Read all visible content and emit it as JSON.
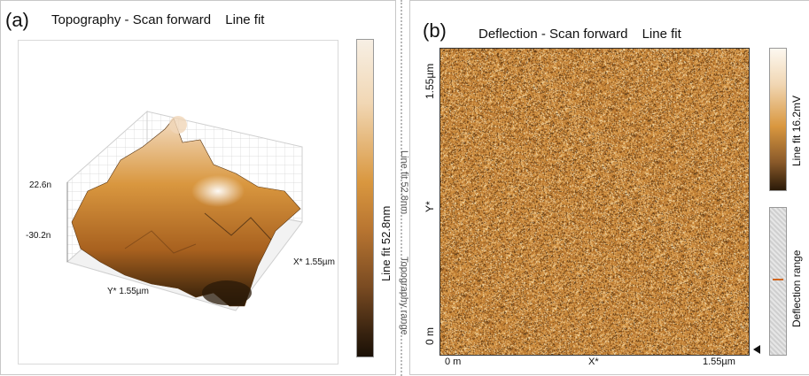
{
  "panel_a": {
    "letter": "(a)",
    "title": "Topography - Scan forward",
    "fit": "Line fit",
    "z_high": "22.6n",
    "z_low": "-30.2n",
    "x_axis": "X* 1.55µm",
    "y_axis": "Y* 1.55µm",
    "colorbar_label": "Line fit 52.8nm",
    "colors": {
      "dark": "#2a1a08",
      "mid": "#c77a2a",
      "light": "#f7efe4",
      "wall": "#e9e9e9"
    }
  },
  "panel_b": {
    "letter": "(b)",
    "title": "Deflection - Scan forward",
    "fit": "Line fit",
    "y_top": "1.55µm",
    "y_mid": "Y*",
    "y_bottom": "0 m",
    "x_left": "0 m",
    "x_mid": "X*",
    "x_right": "1.55µm",
    "left_partial_top": "Line fit 52.8nm",
    "left_partial_bottom": "Topography range",
    "colorbar_label": "Line fit 16.2mV",
    "range_label": "Deflection range",
    "colors": {
      "base": "#c9852f",
      "dark": "#5a3612",
      "light": "#f1d9a8"
    }
  }
}
